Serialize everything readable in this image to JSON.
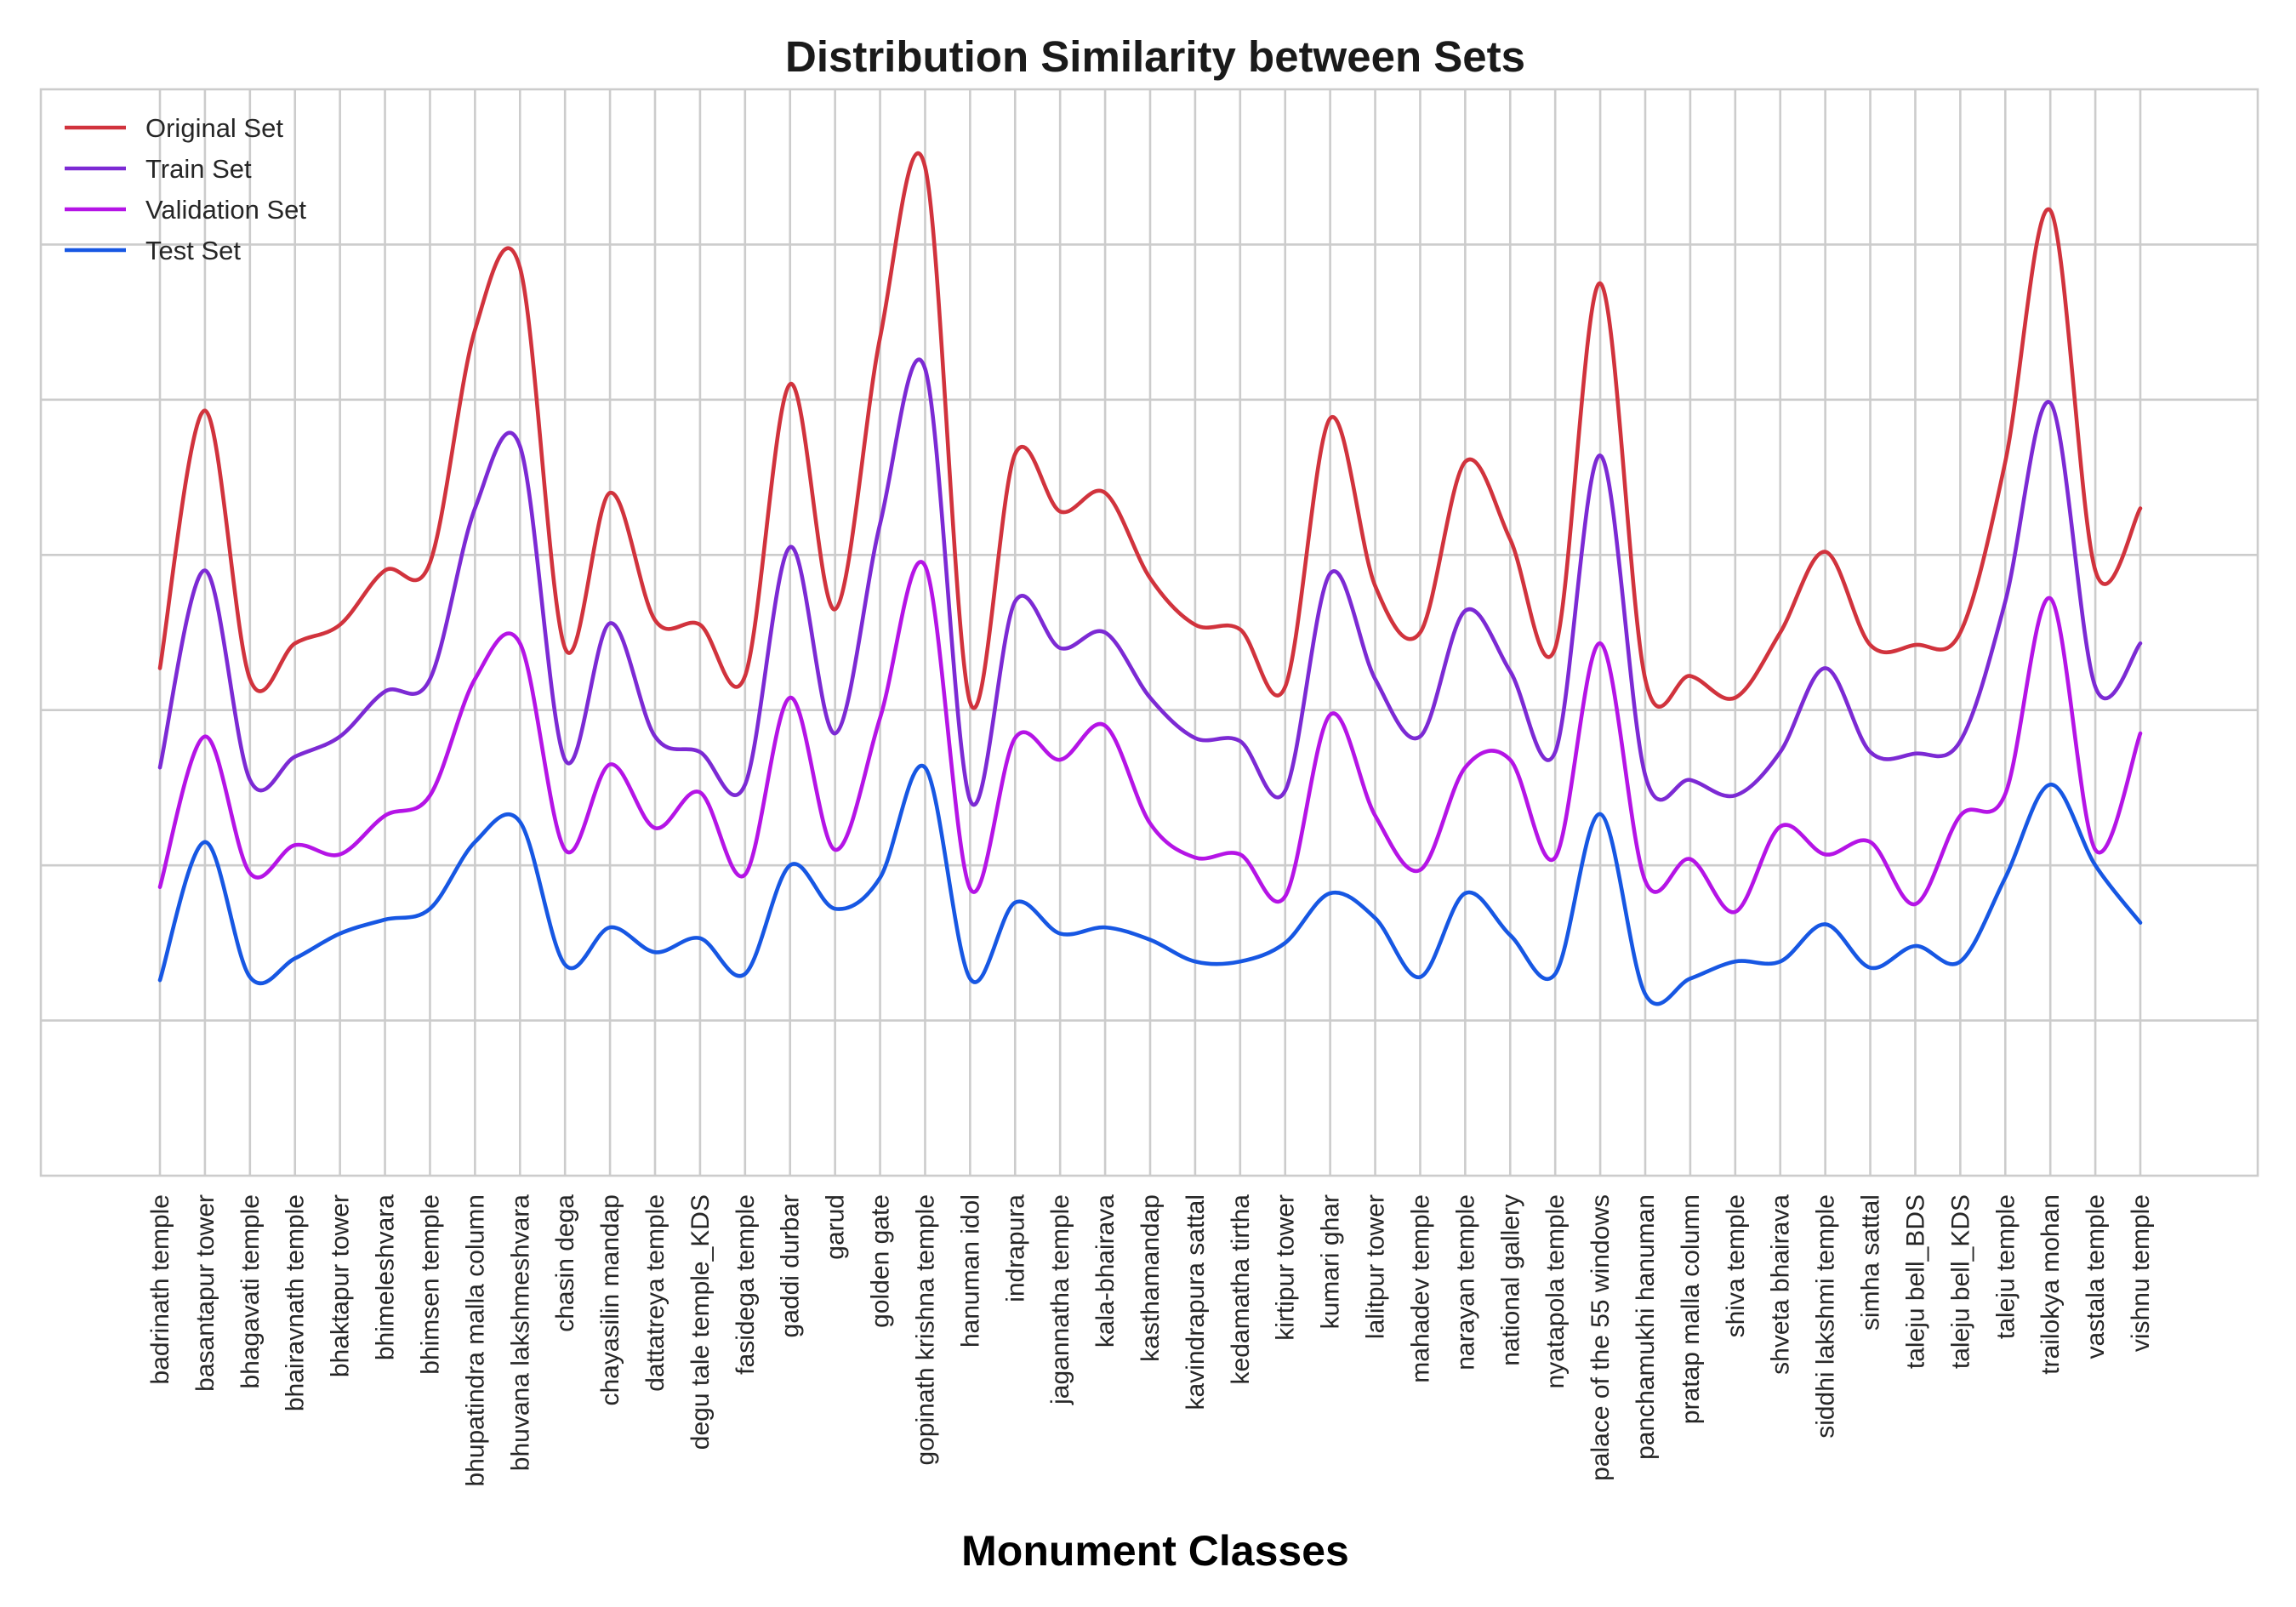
{
  "chart_data": {
    "type": "line",
    "title": "Distribution Similarity between Sets",
    "xlabel": "Monument Classes",
    "ylabel": "",
    "ylim": [
      0,
      7
    ],
    "grid": true,
    "legend_position": "top-left",
    "categories": [
      "badrinath temple",
      "basantapur tower",
      "bhagavati temple",
      "bhairavnath temple",
      "bhaktapur tower",
      "bhimeleshvara",
      "bhimsen temple",
      "bhupatindra malla column",
      "bhuvana lakshmeshvara",
      "chasin dega",
      "chayasilin mandap",
      "dattatreya temple",
      "degu tale temple_KDS",
      "fasidega temple",
      "gaddi durbar",
      "garud",
      "golden gate",
      "gopinath krishna temple",
      "hanuman idol",
      "indrapura",
      "jagannatha temple",
      "kala-bhairava",
      "kasthamandap",
      "kavindrapura sattal",
      "kedamatha tirtha",
      "kirtipur tower",
      "kumari ghar",
      "lalitpur tower",
      "mahadev temple",
      "narayan temple",
      "national gallery",
      "nyatapola temple",
      "palace of the 55 windows",
      "panchamukhi hanuman",
      "pratap malla column",
      "shiva temple",
      "shveta bhairava",
      "siddhi lakshmi temple",
      "simha sattal",
      "taleju bell_BDS",
      "taleju bell_KDS",
      "taleju temple",
      "trailokya mohan",
      "vastala temple",
      "vishnu temple"
    ],
    "series": [
      {
        "name": "Original Set",
        "color": "#d1333d",
        "values": [
          3.27,
          4.93,
          3.2,
          3.43,
          3.55,
          3.9,
          3.95,
          5.45,
          5.85,
          3.4,
          4.4,
          3.58,
          3.55,
          3.22,
          5.1,
          3.65,
          5.4,
          6.5,
          3.05,
          4.65,
          4.28,
          4.4,
          3.85,
          3.55,
          3.52,
          3.15,
          4.88,
          3.8,
          3.5,
          4.6,
          4.1,
          3.4,
          5.75,
          3.2,
          3.22,
          3.08,
          3.5,
          4.02,
          3.42,
          3.42,
          3.5,
          4.6,
          6.22,
          3.9,
          4.3
        ]
      },
      {
        "name": "Train Set",
        "color": "#7c2ad4",
        "values": [
          2.63,
          3.9,
          2.55,
          2.7,
          2.83,
          3.12,
          3.2,
          4.3,
          4.7,
          2.68,
          3.56,
          2.83,
          2.73,
          2.52,
          4.05,
          2.85,
          4.2,
          5.2,
          2.42,
          3.7,
          3.4,
          3.5,
          3.08,
          2.82,
          2.8,
          2.48,
          3.88,
          3.2,
          2.83,
          3.64,
          3.25,
          2.73,
          4.64,
          2.58,
          2.55,
          2.45,
          2.73,
          3.27,
          2.73,
          2.72,
          2.8,
          3.7,
          4.98,
          3.15,
          3.43
        ]
      },
      {
        "name": "Validation Set",
        "color": "#b514e6",
        "values": [
          1.86,
          2.83,
          1.95,
          2.13,
          2.07,
          2.32,
          2.45,
          3.2,
          3.43,
          2.1,
          2.65,
          2.24,
          2.47,
          1.94,
          3.08,
          2.1,
          2.95,
          3.93,
          1.85,
          2.82,
          2.68,
          2.9,
          2.27,
          2.05,
          2.07,
          1.8,
          2.97,
          2.32,
          1.97,
          2.63,
          2.68,
          2.05,
          3.43,
          1.9,
          2.04,
          1.7,
          2.25,
          2.07,
          2.15,
          1.75,
          2.32,
          2.46,
          3.72,
          2.1,
          2.85
        ]
      },
      {
        "name": "Test Set",
        "color": "#1757e3",
        "values": [
          1.26,
          2.15,
          1.28,
          1.4,
          1.56,
          1.65,
          1.72,
          2.15,
          2.28,
          1.36,
          1.6,
          1.44,
          1.53,
          1.3,
          2.0,
          1.72,
          1.92,
          2.63,
          1.27,
          1.76,
          1.56,
          1.6,
          1.52,
          1.38,
          1.38,
          1.5,
          1.82,
          1.66,
          1.28,
          1.82,
          1.55,
          1.3,
          2.33,
          1.17,
          1.27,
          1.38,
          1.38,
          1.62,
          1.34,
          1.48,
          1.38,
          1.92,
          2.52,
          2.0,
          1.63
        ]
      }
    ]
  }
}
